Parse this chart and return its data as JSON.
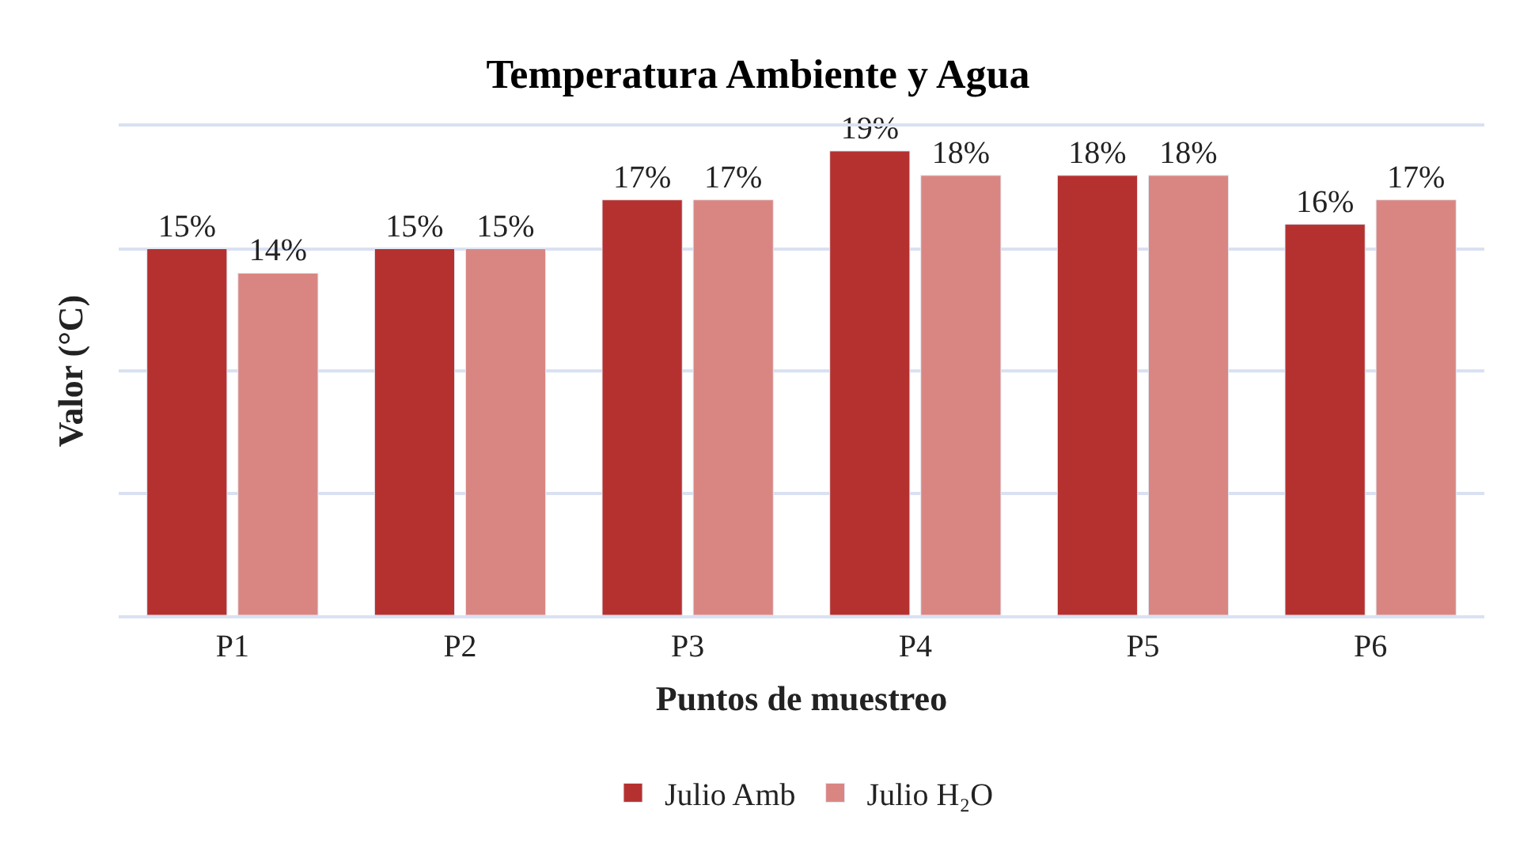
{
  "chart_data": {
    "type": "bar",
    "title": "Temperatura Ambiente y Agua",
    "xlabel": "Puntos de muestreo",
    "ylabel": "Valor (°C)",
    "categories": [
      "P1",
      "P2",
      "P3",
      "P4",
      "P5",
      "P6"
    ],
    "series": [
      {
        "name": "Julio Amb",
        "color": "#b5312f",
        "values": [
          15,
          15,
          17,
          19,
          18,
          16
        ],
        "value_labels": [
          "15%",
          "15%",
          "17%",
          "19%",
          "18%",
          "16%"
        ]
      },
      {
        "name": "Julio H₂O",
        "color": "#d98682",
        "values": [
          14,
          15,
          17,
          18,
          18,
          17
        ],
        "value_labels": [
          "14%",
          "15%",
          "17%",
          "18%",
          "18%",
          "17%"
        ]
      }
    ],
    "ylim": [
      0,
      20
    ],
    "yticks": [
      {
        "value": 0,
        "label": null
      },
      {
        "value": 5,
        "label": null
      },
      {
        "value": 10,
        "label": null
      },
      {
        "value": 15,
        "label": null
      },
      {
        "value": 20,
        "label": null
      }
    ],
    "grid": "y",
    "legend": "bottom",
    "tick_labels": "x"
  }
}
